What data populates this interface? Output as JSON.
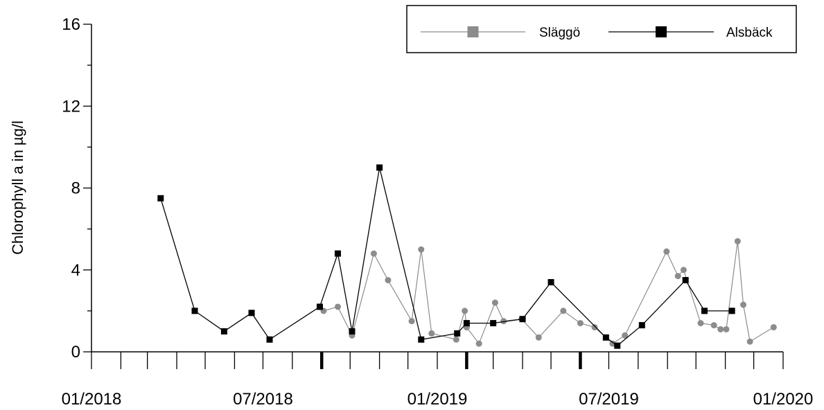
{
  "chart_data": {
    "type": "line",
    "title": "",
    "xlabel": "",
    "ylabel": "Chlorophyll a in µg/l",
    "ylim": [
      0,
      16
    ],
    "yticks": [
      0,
      4,
      8,
      12,
      16
    ],
    "y_minor_step": 2,
    "xlim": [
      "2018-01-01",
      "2020-01-01"
    ],
    "xtick_labels": [
      "01/2018",
      "07/2018",
      "01/2019",
      "07/2019",
      "01/2020"
    ],
    "xtick_dates": [
      "2018-01-01",
      "2018-07-01",
      "2019-01-01",
      "2019-07-01",
      "2020-01-01"
    ],
    "minor_month_ticks": true,
    "highlight_ticks": [
      "2018-09-01",
      "2019-02-01",
      "2019-06-01"
    ],
    "grid": false,
    "legend_position": "top-right",
    "series": [
      {
        "name": "Släggö",
        "color": "#8c8c8c",
        "marker": "circle",
        "x": [
          "2018-09-03",
          "2018-09-18",
          "2018-10-03",
          "2018-10-26",
          "2018-11-10",
          "2018-12-05",
          "2018-12-15",
          "2018-12-26",
          "2019-01-21",
          "2019-01-30",
          "2019-02-01",
          "2019-02-14",
          "2019-03-03",
          "2019-03-12",
          "2019-03-31",
          "2019-04-18",
          "2019-05-14",
          "2019-06-01",
          "2019-06-16",
          "2019-07-05",
          "2019-07-18",
          "2019-08-31",
          "2019-09-12",
          "2019-09-18",
          "2019-10-06",
          "2019-10-20",
          "2019-10-27",
          "2019-11-02",
          "2019-11-14",
          "2019-11-20",
          "2019-11-27",
          "2019-12-22"
        ],
        "y": [
          2.0,
          2.2,
          0.8,
          4.8,
          3.5,
          1.5,
          5.0,
          0.9,
          0.6,
          2.0,
          1.2,
          0.4,
          2.4,
          1.5,
          1.6,
          0.7,
          2.0,
          1.4,
          1.2,
          0.4,
          0.8,
          4.9,
          3.7,
          4.0,
          1.4,
          1.3,
          1.1,
          1.1,
          5.4,
          2.3,
          0.5,
          1.2
        ]
      },
      {
        "name": "Alsbäck",
        "color": "#000000",
        "marker": "square",
        "x": [
          "2018-03-15",
          "2018-04-20",
          "2018-05-21",
          "2018-06-19",
          "2018-07-08",
          "2018-08-30",
          "2018-09-18",
          "2018-10-03",
          "2018-11-01",
          "2018-12-15",
          "2019-01-22",
          "2019-02-01",
          "2019-03-01",
          "2019-04-01",
          "2019-05-01",
          "2019-06-28",
          "2019-07-10",
          "2019-08-05",
          "2019-09-20",
          "2019-10-10",
          "2019-11-08"
        ],
        "y": [
          7.5,
          2.0,
          1.0,
          1.9,
          0.6,
          2.2,
          4.8,
          1.0,
          9.0,
          0.6,
          0.9,
          1.4,
          1.4,
          1.6,
          3.4,
          0.7,
          0.3,
          1.3,
          3.5,
          2.0,
          2.0
        ]
      }
    ]
  }
}
